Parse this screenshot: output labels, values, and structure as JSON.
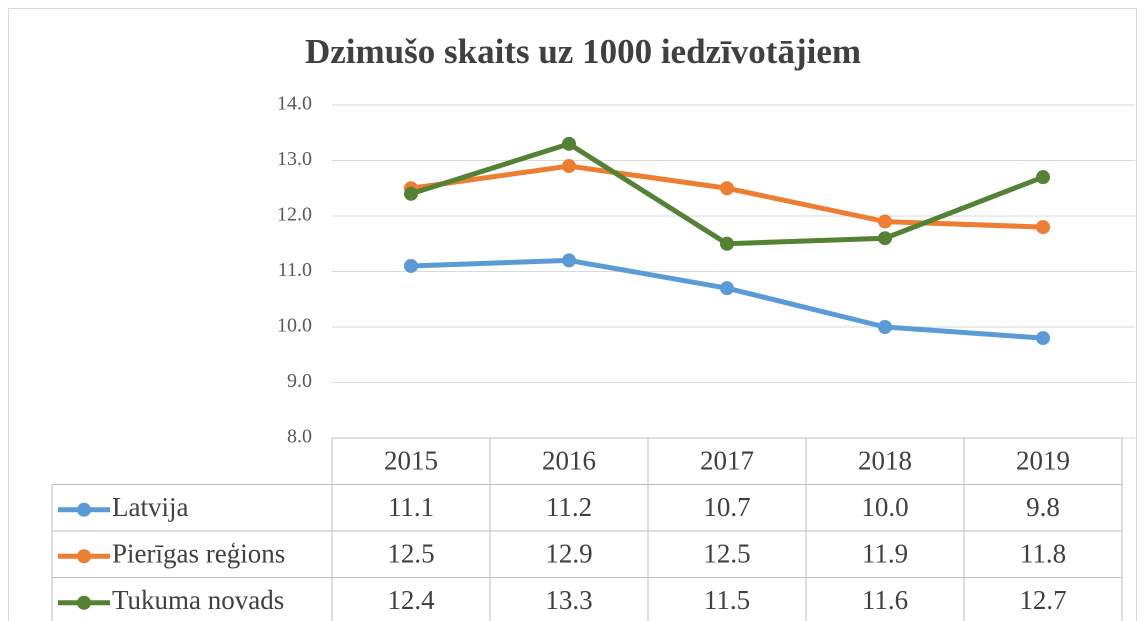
{
  "chart_data": {
    "type": "line",
    "title": "Dzimušo skaits uz 1000 iedzīvotājiem",
    "categories": [
      "2015",
      "2016",
      "2017",
      "2018",
      "2019"
    ],
    "ylim": [
      8,
      14
    ],
    "yticks": [
      {
        "value": 8,
        "label": "8.0"
      },
      {
        "value": 9,
        "label": "9.0"
      },
      {
        "value": 10,
        "label": "10.0"
      },
      {
        "value": 11,
        "label": "11.0"
      },
      {
        "value": 12,
        "label": "12.0"
      },
      {
        "value": 13,
        "label": "13.0"
      },
      {
        "value": 14,
        "label": "14.0"
      }
    ],
    "grid": true,
    "series": [
      {
        "name": "Latvija",
        "color": "#5b9bd5",
        "values": [
          11.1,
          11.2,
          10.7,
          10.0,
          9.8
        ],
        "value_labels": [
          "11.1",
          "11.2",
          "10.7",
          "10.0",
          "9.8"
        ]
      },
      {
        "name": "Pierīgas reģions",
        "color": "#ed7d31",
        "values": [
          12.5,
          12.9,
          12.5,
          11.9,
          11.8
        ],
        "value_labels": [
          "12.5",
          "12.9",
          "12.5",
          "11.9",
          "11.8"
        ]
      },
      {
        "name": "Tukuma novads",
        "color": "#548235",
        "values": [
          12.4,
          13.3,
          11.5,
          11.6,
          12.7
        ],
        "value_labels": [
          "12.4",
          "13.3",
          "11.5",
          "11.6",
          "12.7"
        ]
      }
    ]
  }
}
